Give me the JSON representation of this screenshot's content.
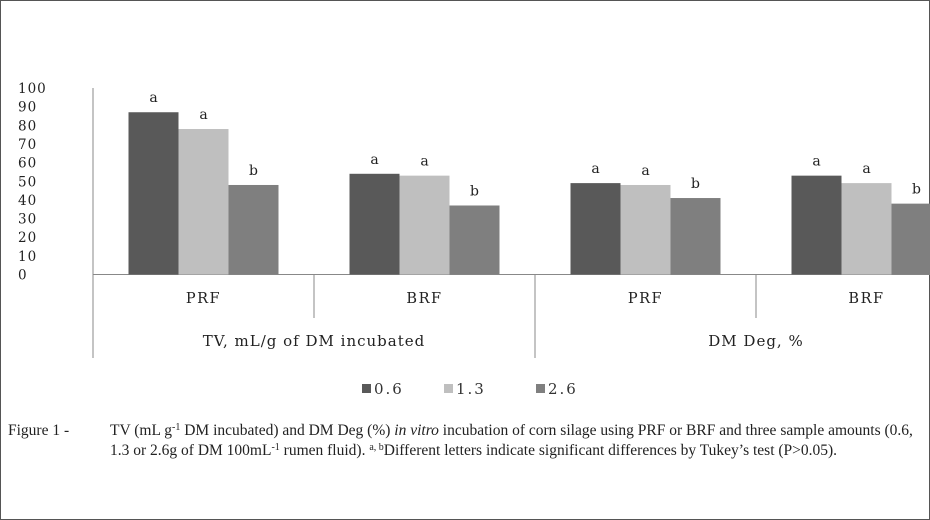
{
  "chart_data": {
    "type": "bar",
    "categories": [
      "PRF",
      "BRF",
      "PRF",
      "BRF"
    ],
    "groups": [
      {
        "label": "TV, mL/g of DM incubated"
      },
      {
        "label": "DM Deg, %"
      }
    ],
    "series": [
      {
        "name": "0.6",
        "color": "#595959",
        "values": [
          87,
          54,
          49,
          53
        ],
        "labels": [
          "a",
          "a",
          "a",
          "a"
        ]
      },
      {
        "name": "1.3",
        "color": "#bfbfbf",
        "values": [
          78,
          53,
          48,
          49
        ],
        "labels": [
          "a",
          "a",
          "a",
          "a"
        ]
      },
      {
        "name": "2.6",
        "color": "#7f7f7f",
        "values": [
          48,
          37,
          41,
          38
        ],
        "labels": [
          "b",
          "b",
          "b",
          "b"
        ]
      }
    ],
    "ylim": [
      0,
      100
    ],
    "yticks": [
      "0",
      "10",
      "20",
      "30",
      "40",
      "50",
      "60",
      "70",
      "80",
      "90",
      "100"
    ],
    "legend_position": "bottom",
    "grid": false
  },
  "caption": {
    "figure_label": "Figure 1 -",
    "part1": "TV (mL g",
    "sup1": "-1",
    "part2": " DM incubated) and DM Deg (%) ",
    "italic": "in vitro",
    "part3": " incubation of corn silage using PRF or BRF and three sample amounts (0.6, 1.3 or 2.6g of DM 100mL",
    "sup2": "-1",
    "part4": " rumen fluid). ",
    "sup3": "a, b",
    "part5": "Different letters indicate significant differences by Tukey’s test (P>0.05)."
  }
}
